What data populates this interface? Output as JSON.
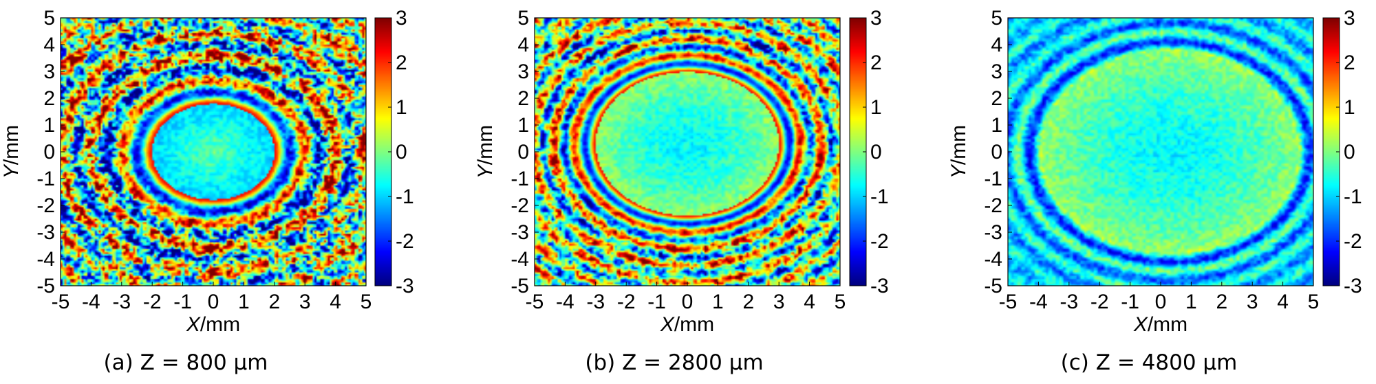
{
  "chart_data": [
    {
      "type": "heatmap",
      "title": "",
      "caption": "(a) Z = 800 μm",
      "xlabel_var": "X",
      "xlabel_unit": "/mm",
      "ylabel_var": "Y",
      "ylabel_unit": "/mm",
      "xlim": [
        -5,
        5
      ],
      "ylim": [
        -5,
        5
      ],
      "xticks": [
        "-5",
        "-4",
        "-3",
        "-2",
        "-1",
        "0",
        "1",
        "2",
        "3",
        "4",
        "5"
      ],
      "yticks": [
        "5",
        "4",
        "3",
        "2",
        "1",
        "0",
        "-1",
        "-2",
        "-3",
        "-4",
        "-5"
      ],
      "colorbar": {
        "colormap": "jet",
        "range": [
          -3,
          3
        ],
        "ticks": [
          "3",
          "2",
          "1",
          "0",
          "-1",
          "-2",
          "-3"
        ]
      },
      "pattern": {
        "center": [
          0,
          0
        ],
        "central_spot_radius_mm": 2.0,
        "ring_spacing_mm": 1.0,
        "outer_noise": "high"
      }
    },
    {
      "type": "heatmap",
      "title": "",
      "caption": "(b) Z = 2800 μm",
      "xlabel_var": "X",
      "xlabel_unit": "/mm",
      "ylabel_var": "Y",
      "ylabel_unit": "/mm",
      "xlim": [
        -5,
        5
      ],
      "ylim": [
        -5,
        5
      ],
      "xticks": [
        "-5",
        "-4",
        "-3",
        "-2",
        "-1",
        "0",
        "1",
        "2",
        "3",
        "4",
        "5"
      ],
      "yticks": [
        "5",
        "4",
        "3",
        "2",
        "1",
        "0",
        "-1",
        "-2",
        "-3",
        "-4",
        "-5"
      ],
      "colorbar": {
        "colormap": "jet",
        "range": [
          -3,
          3
        ],
        "ticks": [
          "3",
          "2",
          "1",
          "0",
          "-1",
          "-2",
          "-3"
        ]
      },
      "pattern": {
        "center": [
          0,
          0.3
        ],
        "central_spot_radius_mm": 3.0,
        "ring_spacing_mm": 0.7,
        "outer_noise": "medium"
      }
    },
    {
      "type": "heatmap",
      "title": "",
      "caption": "(c) Z = 4800 μm",
      "xlabel_var": "X",
      "xlabel_unit": "/mm",
      "ylabel_var": "Y",
      "ylabel_unit": "/mm",
      "xlim": [
        -5,
        5
      ],
      "ylim": [
        -5,
        5
      ],
      "xticks": [
        "-5",
        "-4",
        "-3",
        "-2",
        "-1",
        "0",
        "1",
        "2",
        "3",
        "4",
        "5"
      ],
      "yticks": [
        "5",
        "4",
        "3",
        "2",
        "1",
        "0",
        "-1",
        "-2",
        "-3",
        "-4",
        "-5"
      ],
      "colorbar": {
        "colormap": "jet",
        "range": [
          -3,
          3
        ],
        "ticks": [
          "3",
          "2",
          "1",
          "0",
          "-1",
          "-2",
          "-3"
        ]
      },
      "pattern": {
        "center": [
          0.3,
          0
        ],
        "central_spot_radius_mm": 4.2,
        "ring_spacing_mm": 0.8,
        "outer_noise": "low"
      }
    }
  ]
}
